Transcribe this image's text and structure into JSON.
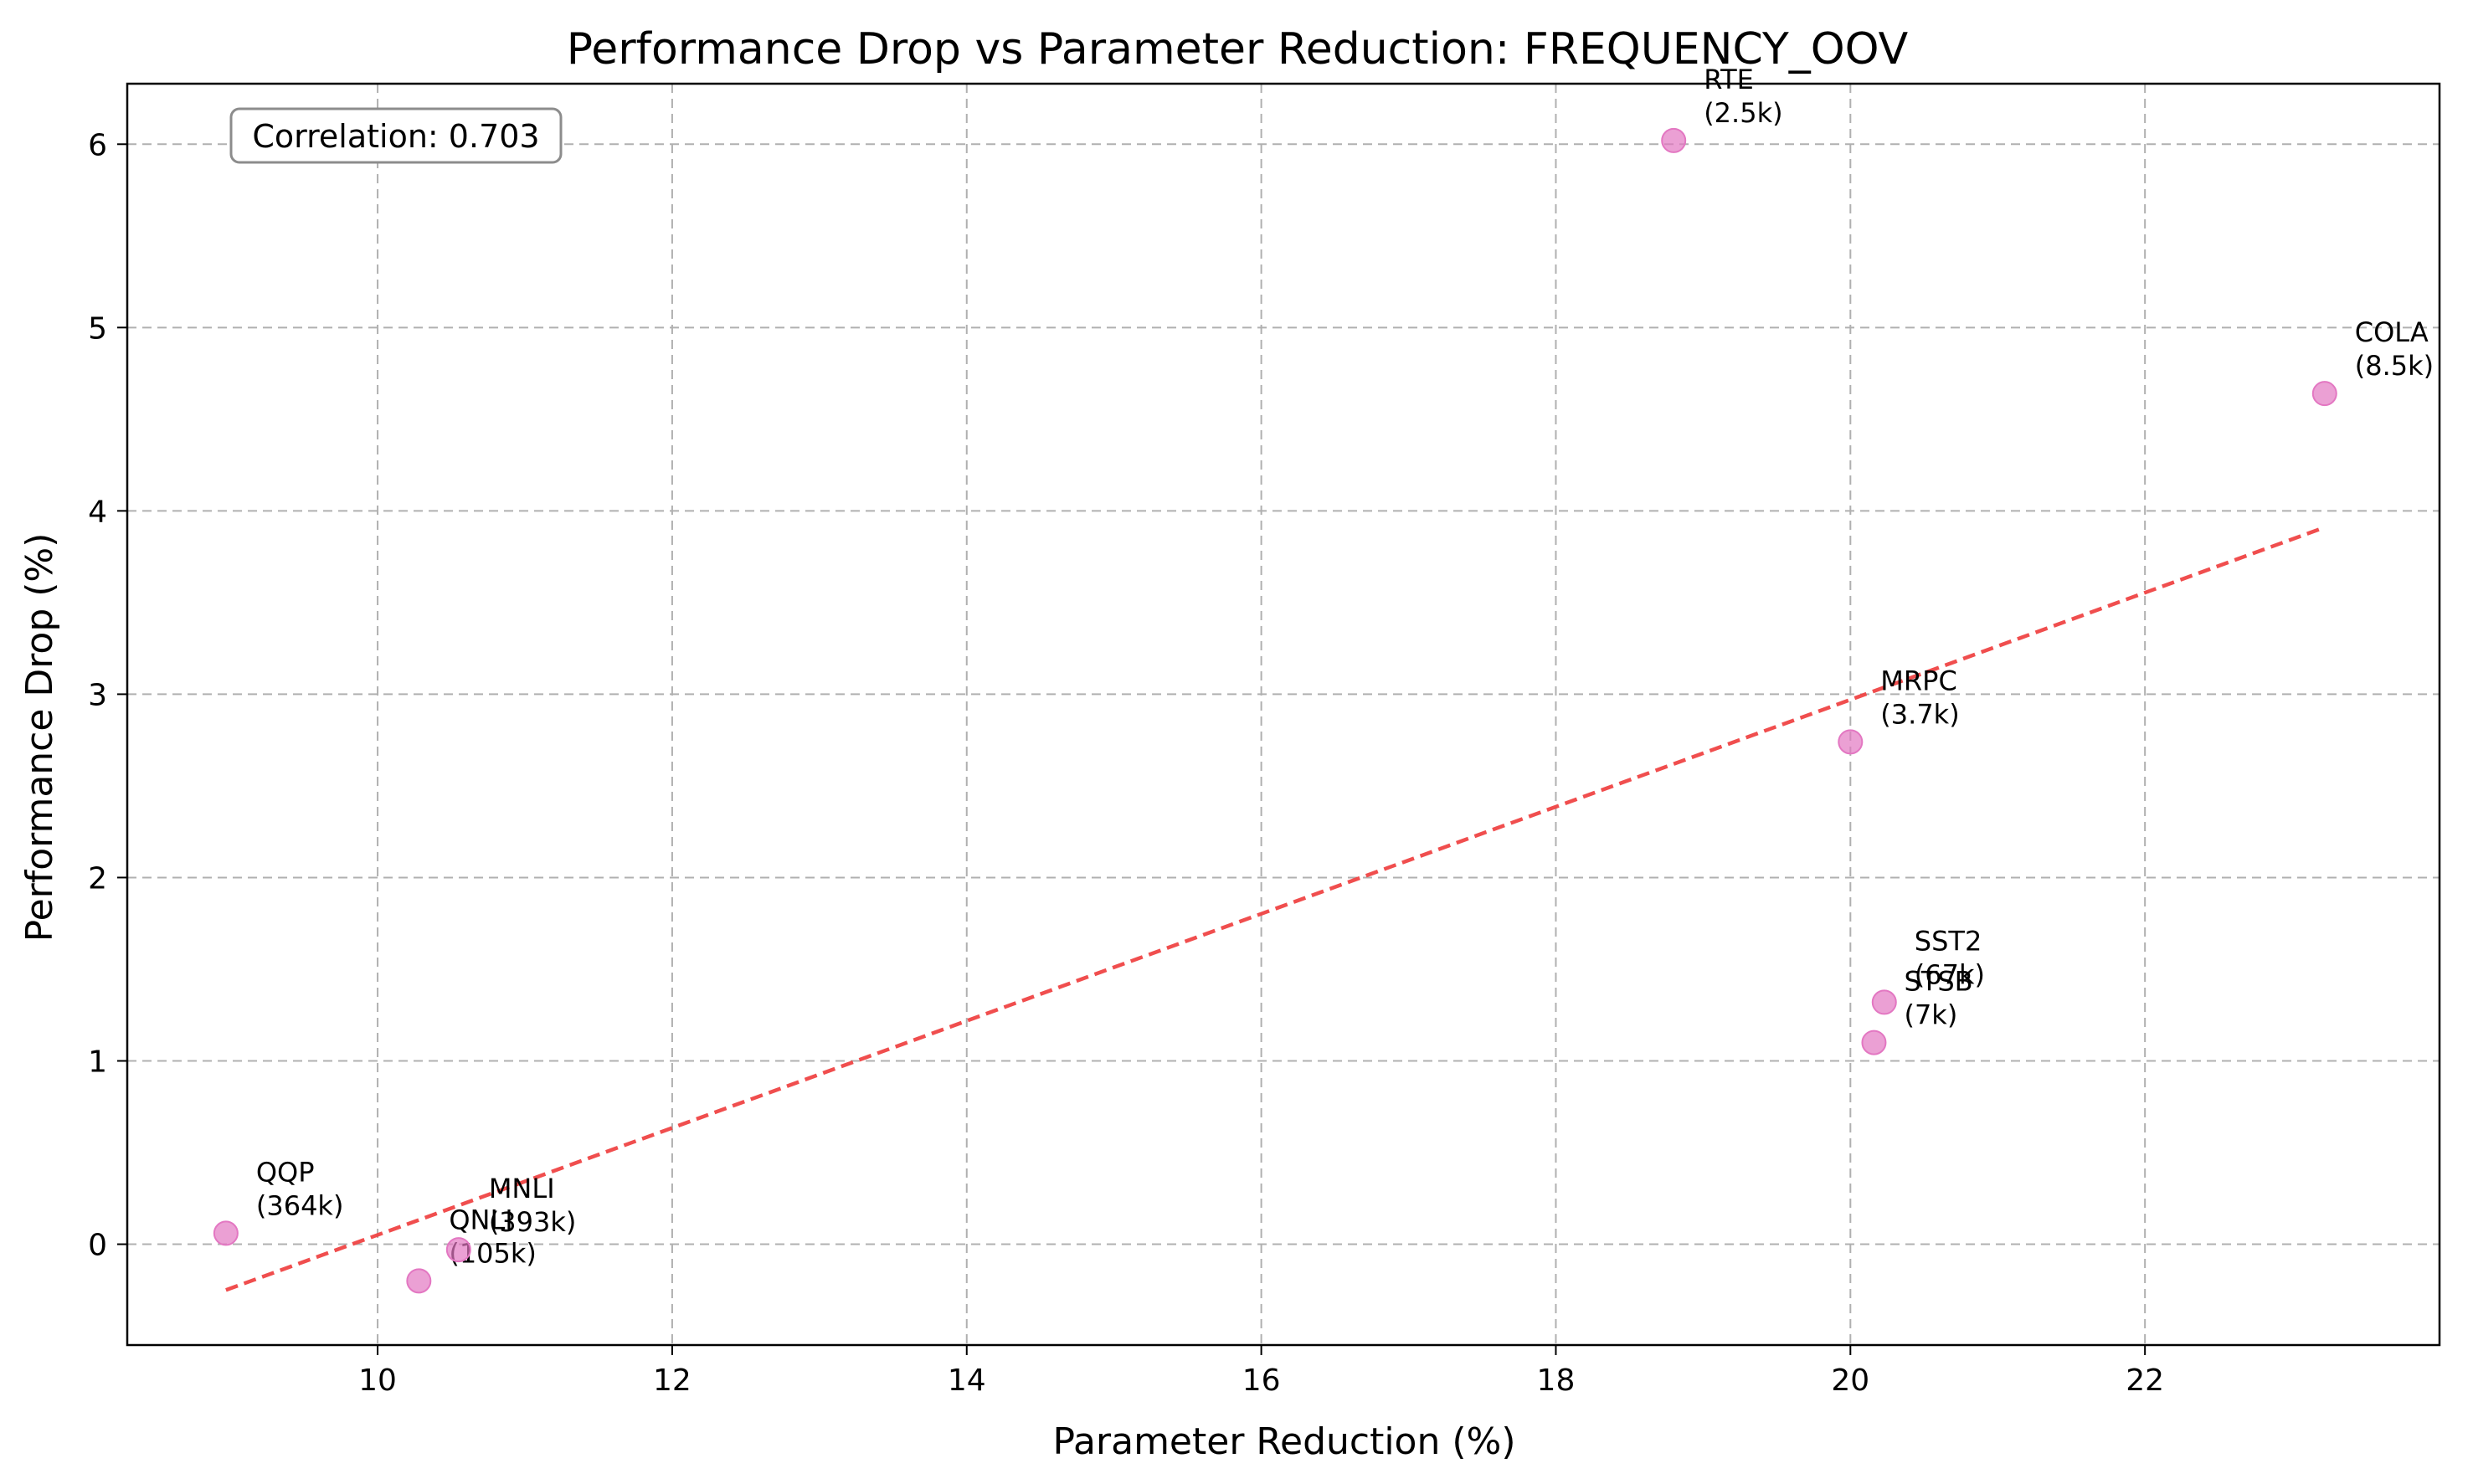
{
  "chart_data": {
    "type": "scatter",
    "title": "Performance Drop vs Parameter Reduction: FREQUENCY_OOV",
    "xlabel": "Parameter Reduction (%)",
    "ylabel": "Performance Drop (%)",
    "xlim": [
      8.3,
      24.0
    ],
    "ylim": [
      -0.55,
      6.33
    ],
    "xticks": [
      10,
      12,
      14,
      16,
      18,
      20,
      22
    ],
    "yticks": [
      0,
      1,
      2,
      3,
      4,
      5,
      6
    ],
    "grid": true,
    "point_color": "#e377c2",
    "points": [
      {
        "name": "QQP",
        "size_label": "(364k)",
        "x": 8.97,
        "y": 0.06
      },
      {
        "name": "QNLI",
        "size_label": "(105k)",
        "x": 10.28,
        "y": -0.2
      },
      {
        "name": "MNLI",
        "size_label": "(393k)",
        "x": 10.55,
        "y": -0.03
      },
      {
        "name": "RTE",
        "size_label": "(2.5k)",
        "x": 18.8,
        "y": 6.02
      },
      {
        "name": "MRPC",
        "size_label": "(3.7k)",
        "x": 20.0,
        "y": 2.74
      },
      {
        "name": "STSB",
        "size_label": "(7k)",
        "x": 20.16,
        "y": 1.1
      },
      {
        "name": "SST2",
        "size_label": "(67k)",
        "x": 20.23,
        "y": 1.32
      },
      {
        "name": "COLA",
        "size_label": "(8.5k)",
        "x": 23.22,
        "y": 4.64
      }
    ],
    "trendline": {
      "color": "#ef4444",
      "style": "dashed",
      "x": [
        8.97,
        23.22
      ],
      "y": [
        -0.25,
        3.91
      ]
    },
    "annotation": {
      "text": "Correlation: 0.703",
      "placement": "top-left"
    }
  }
}
